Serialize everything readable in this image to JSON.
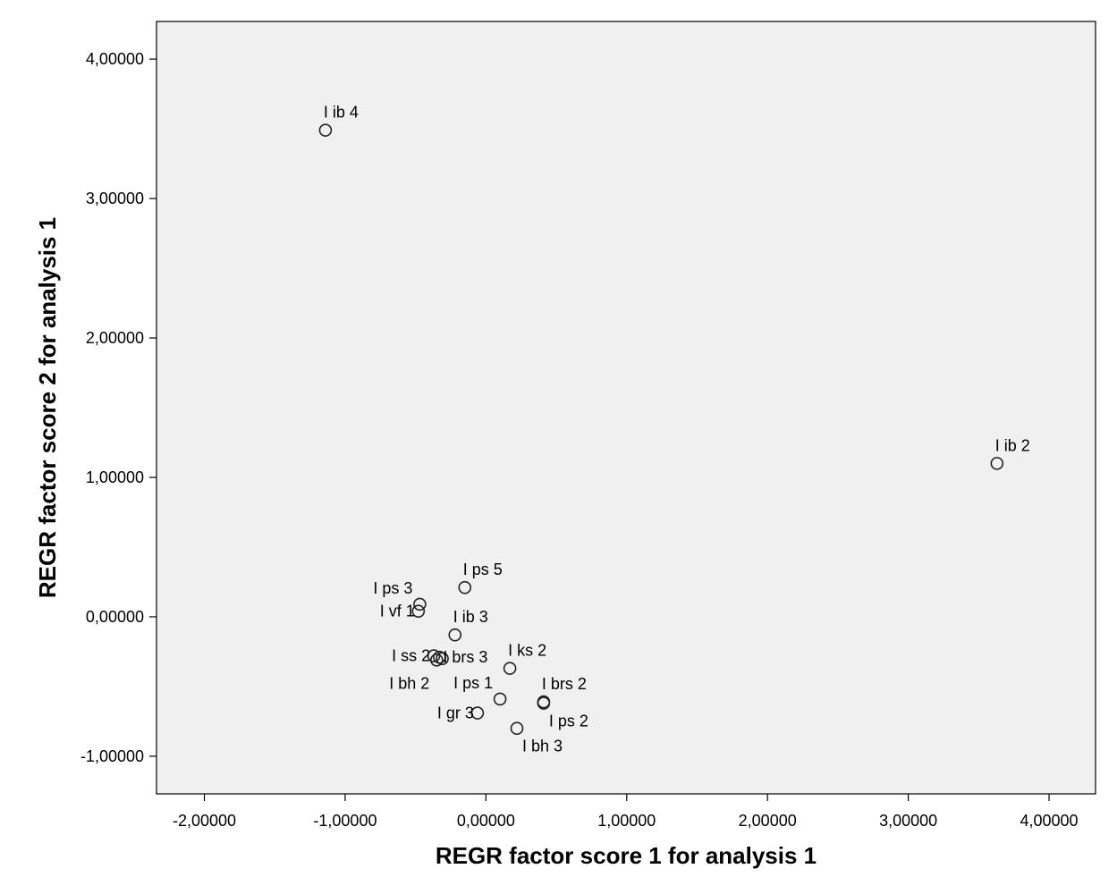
{
  "chart_data": {
    "type": "scatter",
    "title": "",
    "xlabel": "REGR factor score   1 for analysis 1",
    "ylabel": "REGR factor score   2 for analysis 1",
    "xlim": [
      -2.34,
      4.33
    ],
    "ylim": [
      -1.27,
      4.27
    ],
    "xticks": [
      -2,
      -1,
      0,
      1,
      2,
      3,
      4
    ],
    "xtick_labels": [
      "-2,00000",
      "-1,00000",
      "0,00000",
      "1,00000",
      "2,00000",
      "3,00000",
      "4,00000"
    ],
    "yticks": [
      -1,
      0,
      1,
      2,
      3,
      4
    ],
    "ytick_labels": [
      "-1,00000",
      "0,00000",
      "1,00000",
      "2,00000",
      "3,00000",
      "4,00000"
    ],
    "grid": false,
    "plot_background": "#f0f0f0",
    "marker": "open-circle",
    "points": [
      {
        "label": "I ib 4",
        "x": -1.14,
        "y": 3.49,
        "label_pos": "above"
      },
      {
        "label": "I ib 2",
        "x": 3.63,
        "y": 1.1,
        "label_pos": "above"
      },
      {
        "label": "I ps 5",
        "x": -0.15,
        "y": 0.21,
        "label_pos": "above"
      },
      {
        "label": "I ps 3",
        "x": -0.47,
        "y": 0.09,
        "label_pos": "left-up"
      },
      {
        "label": "I vf 1",
        "x": -0.48,
        "y": 0.04,
        "label_pos": "left"
      },
      {
        "label": "I ib 3",
        "x": -0.22,
        "y": -0.13,
        "label_pos": "above"
      },
      {
        "label": "I ss 2",
        "x": -0.37,
        "y": -0.28,
        "label_pos": "left"
      },
      {
        "label": "I brs 3",
        "x": -0.33,
        "y": -0.29,
        "label_pos": "right"
      },
      {
        "label": "",
        "x": -0.31,
        "y": -0.3,
        "label_pos": "none"
      },
      {
        "label": "I bh 2",
        "x": -0.35,
        "y": -0.31,
        "label_pos": "left-down"
      },
      {
        "label": "I ks 2",
        "x": 0.17,
        "y": -0.37,
        "label_pos": "above"
      },
      {
        "label": "I ps 1",
        "x": 0.1,
        "y": -0.59,
        "label_pos": "left-up"
      },
      {
        "label": "I brs 2",
        "x": 0.41,
        "y": -0.61,
        "label_pos": "above"
      },
      {
        "label": "I gr 3",
        "x": -0.06,
        "y": -0.69,
        "label_pos": "left"
      },
      {
        "label": "I ps 2",
        "x": 0.41,
        "y": -0.62,
        "label_pos": "below"
      },
      {
        "label": "I bh 3",
        "x": 0.22,
        "y": -0.8,
        "label_pos": "below"
      }
    ]
  }
}
